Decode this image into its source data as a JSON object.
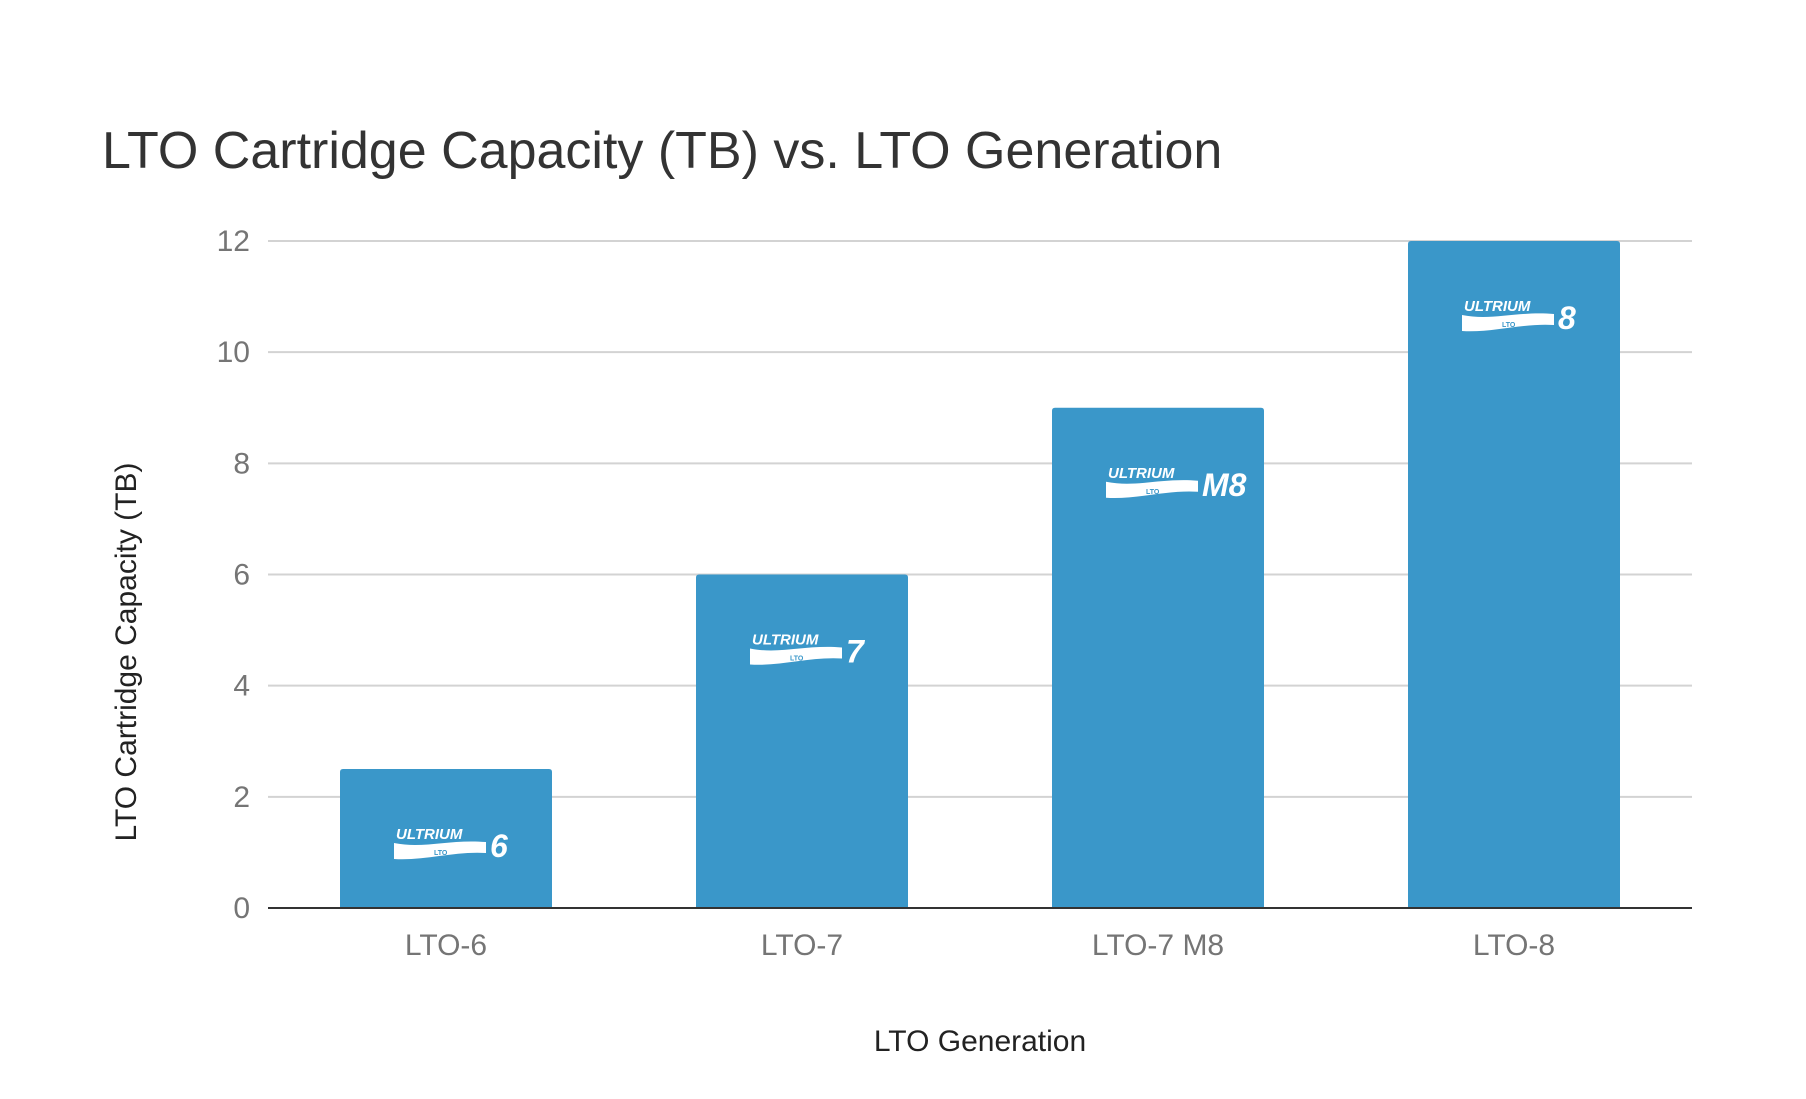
{
  "chart_data": {
    "type": "bar",
    "title": "LTO Cartridge Capacity (TB) vs. LTO Generation",
    "xlabel": "LTO Generation",
    "ylabel": "LTO Cartridge Capacity (TB)",
    "categories": [
      "LTO-6",
      "LTO-7",
      "LTO-7 M8",
      "LTO-8"
    ],
    "values": [
      2.5,
      6,
      9,
      12
    ],
    "ylim": [
      0,
      12
    ],
    "yticks": [
      0,
      2,
      4,
      6,
      8,
      10,
      12
    ],
    "grid": true,
    "legend": "none",
    "bar_color": "#3a97c9",
    "gridline_color": "#d3d3d3",
    "baseline_color": "#333333",
    "bar_logos": [
      {
        "word": "ULTRIUM",
        "mark": "LTO",
        "number": "6",
        "icon": "ultrium-6-logo"
      },
      {
        "word": "ULTRIUM",
        "mark": "LTO",
        "number": "7",
        "icon": "ultrium-7-logo"
      },
      {
        "word": "ULTRIUM",
        "mark": "LTO",
        "number": "M8",
        "icon": "ultrium-m8-logo"
      },
      {
        "word": "ULTRIUM",
        "mark": "LTO",
        "number": "8",
        "icon": "ultrium-8-logo"
      }
    ]
  }
}
